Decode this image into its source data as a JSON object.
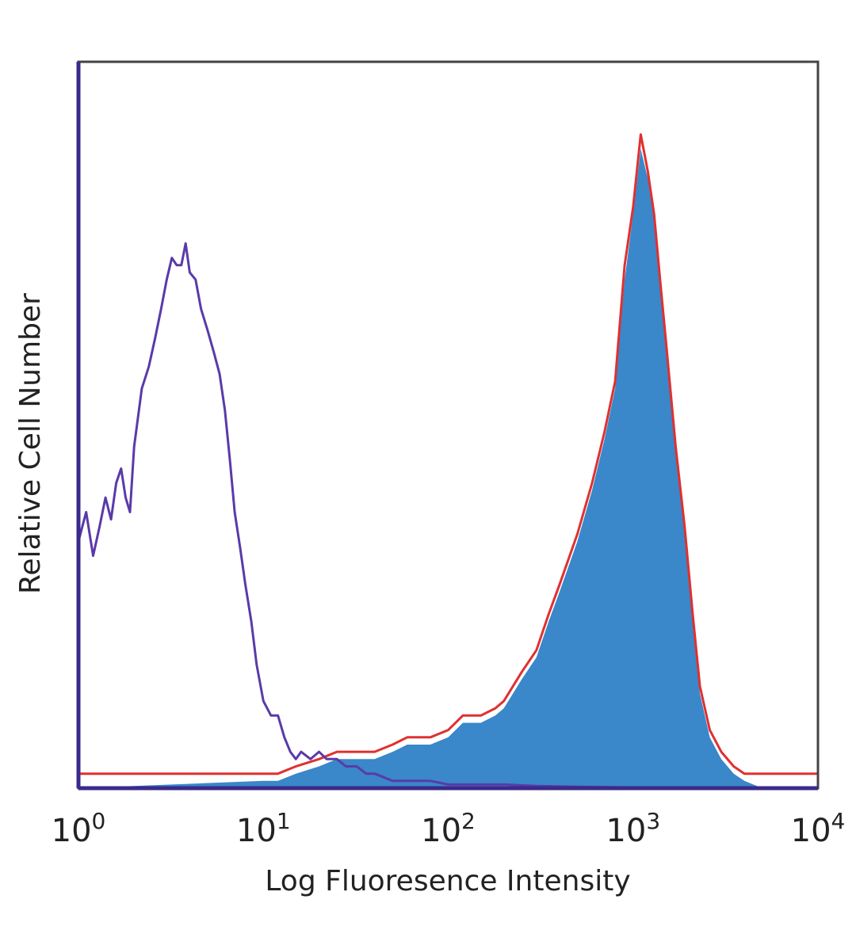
{
  "chart_data": {
    "type": "area",
    "xlabel": "Log Fluoresence Intensity",
    "ylabel": "Relative Cell Number",
    "x_scale": "log",
    "xlim": [
      1,
      10000
    ],
    "ylim": [
      0,
      1
    ],
    "x_ticks": [
      {
        "base": "10",
        "exp": "0",
        "value": 1
      },
      {
        "base": "10",
        "exp": "1",
        "value": 10
      },
      {
        "base": "10",
        "exp": "2",
        "value": 100
      },
      {
        "base": "10",
        "exp": "3",
        "value": 1000
      },
      {
        "base": "10",
        "exp": "4",
        "value": 10000
      }
    ],
    "grid": false,
    "legend": "none",
    "series": [
      {
        "style": "outline",
        "color": "#5a3aa8",
        "x": [
          1.0,
          1.1,
          1.2,
          1.3,
          1.4,
          1.5,
          1.6,
          1.7,
          1.8,
          1.9,
          2.0,
          2.2,
          2.4,
          2.6,
          2.8,
          3.0,
          3.2,
          3.4,
          3.6,
          3.8,
          4.0,
          4.3,
          4.6,
          5.0,
          5.4,
          5.8,
          6.2,
          6.6,
          7.0,
          7.5,
          8.0,
          8.6,
          9.2,
          10,
          11,
          12,
          13,
          14,
          15,
          16,
          18,
          20,
          22,
          25,
          28,
          32,
          36,
          40,
          50,
          60,
          80,
          100,
          150,
          200,
          300,
          500,
          1000,
          3000,
          10000
        ],
        "y": [
          0.34,
          0.38,
          0.32,
          0.36,
          0.4,
          0.37,
          0.42,
          0.44,
          0.4,
          0.38,
          0.47,
          0.55,
          0.58,
          0.62,
          0.66,
          0.7,
          0.73,
          0.72,
          0.72,
          0.75,
          0.71,
          0.7,
          0.66,
          0.63,
          0.6,
          0.57,
          0.52,
          0.45,
          0.38,
          0.33,
          0.28,
          0.23,
          0.17,
          0.12,
          0.1,
          0.1,
          0.07,
          0.05,
          0.04,
          0.05,
          0.04,
          0.05,
          0.04,
          0.04,
          0.03,
          0.03,
          0.02,
          0.02,
          0.01,
          0.01,
          0.01,
          0.005,
          0.005,
          0.005,
          0.003,
          0.002,
          0.001,
          0.001,
          0.0
        ]
      },
      {
        "style": "outline",
        "color": "#e03030",
        "x": [
          1,
          10,
          12,
          15,
          20,
          25,
          30,
          40,
          50,
          60,
          80,
          100,
          120,
          150,
          180,
          200,
          250,
          300,
          350,
          400,
          500,
          600,
          700,
          800,
          900,
          1000,
          1100,
          1200,
          1300,
          1400,
          1500,
          1700,
          1900,
          2100,
          2300,
          2600,
          3000,
          3500,
          4000,
          5000,
          10000
        ],
        "y": [
          0.02,
          0.02,
          0.02,
          0.03,
          0.04,
          0.05,
          0.05,
          0.05,
          0.06,
          0.07,
          0.07,
          0.08,
          0.1,
          0.1,
          0.11,
          0.12,
          0.16,
          0.19,
          0.24,
          0.28,
          0.35,
          0.42,
          0.49,
          0.56,
          0.72,
          0.8,
          0.9,
          0.85,
          0.79,
          0.7,
          0.62,
          0.47,
          0.36,
          0.24,
          0.14,
          0.08,
          0.05,
          0.03,
          0.02,
          0.02,
          0.02
        ]
      },
      {
        "style": "filled",
        "color": "#3a87c9",
        "x": [
          1,
          10,
          12,
          15,
          20,
          25,
          30,
          40,
          50,
          60,
          80,
          100,
          120,
          150,
          180,
          200,
          250,
          300,
          350,
          400,
          500,
          600,
          700,
          800,
          900,
          1000,
          1100,
          1200,
          1300,
          1400,
          1500,
          1700,
          1900,
          2100,
          2300,
          2600,
          3000,
          3500,
          4000,
          5000,
          10000
        ],
        "y": [
          0.0,
          0.01,
          0.01,
          0.02,
          0.03,
          0.04,
          0.04,
          0.04,
          0.05,
          0.06,
          0.06,
          0.07,
          0.09,
          0.09,
          0.1,
          0.11,
          0.15,
          0.18,
          0.23,
          0.27,
          0.34,
          0.41,
          0.48,
          0.55,
          0.7,
          0.79,
          0.88,
          0.84,
          0.78,
          0.69,
          0.61,
          0.46,
          0.35,
          0.23,
          0.13,
          0.07,
          0.04,
          0.02,
          0.01,
          0.0,
          0.0
        ]
      }
    ]
  }
}
